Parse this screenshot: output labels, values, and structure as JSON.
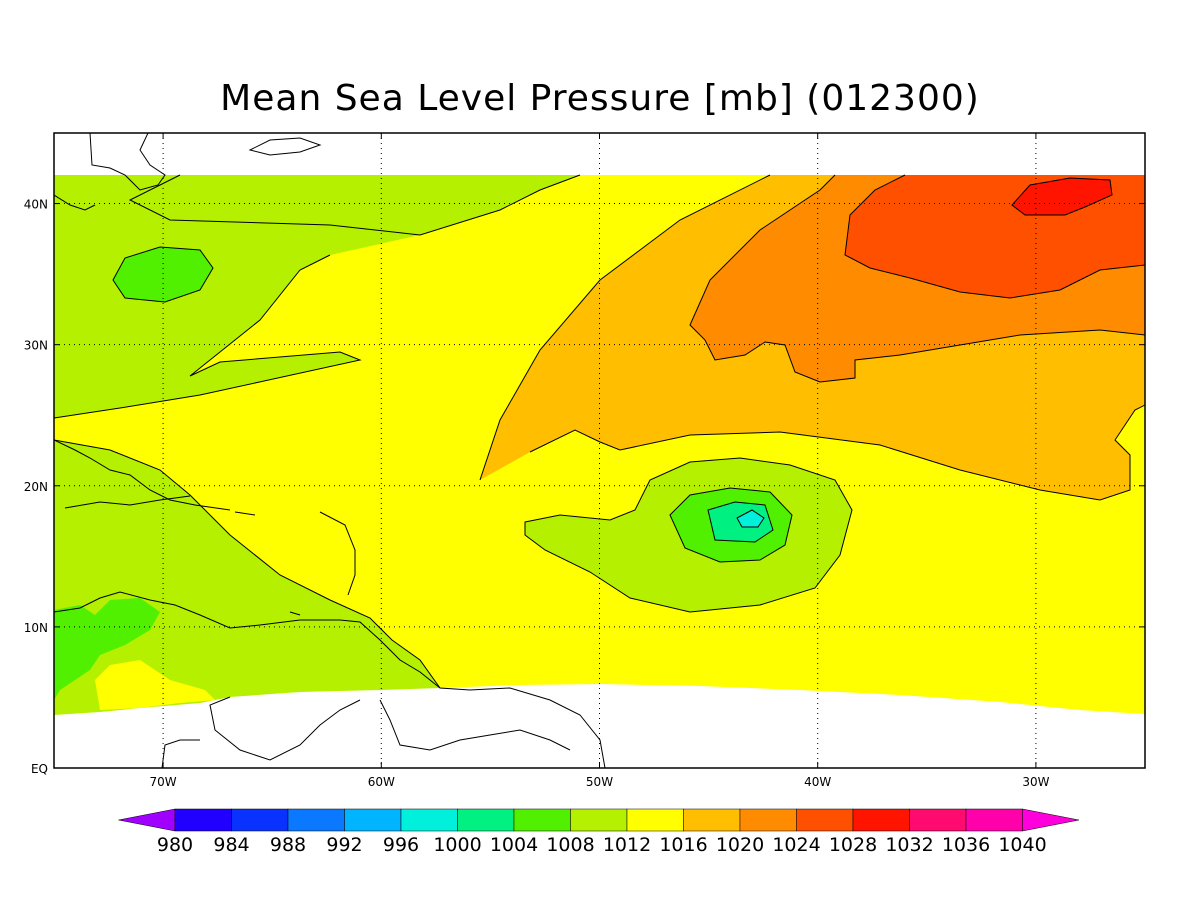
{
  "title": "Mean Sea Level Pressure [mb] (012300)",
  "map": {
    "lon_range": [
      -75,
      -25
    ],
    "lat_range": [
      0,
      45
    ],
    "x_ticks": [
      {
        "value": -70,
        "label": "70W"
      },
      {
        "value": -60,
        "label": "60W"
      },
      {
        "value": -50,
        "label": "50W"
      },
      {
        "value": -40,
        "label": "40W"
      },
      {
        "value": -30,
        "label": "30W"
      }
    ],
    "y_ticks": [
      {
        "value": 0,
        "label": "EQ"
      },
      {
        "value": 10,
        "label": "10N"
      },
      {
        "value": 20,
        "label": "20N"
      },
      {
        "value": 30,
        "label": "30N"
      },
      {
        "value": 40,
        "label": "40N"
      }
    ],
    "grid": "dotted"
  },
  "colorbar": {
    "levels": [
      "980",
      "984",
      "988",
      "992",
      "996",
      "1000",
      "1004",
      "1008",
      "1012",
      "1016",
      "1020",
      "1024",
      "1028",
      "1032",
      "1036",
      "1040"
    ],
    "colors": [
      "#a000ff",
      "#2200ff",
      "#0a32ff",
      "#0a78ff",
      "#00b4ff",
      "#00f0dc",
      "#00f082",
      "#50f000",
      "#b4f000",
      "#ffff00",
      "#ffbe00",
      "#ff8c00",
      "#ff5000",
      "#ff1400",
      "#ff0a6e",
      "#ff00aa",
      "#ff00dc"
    ]
  }
}
